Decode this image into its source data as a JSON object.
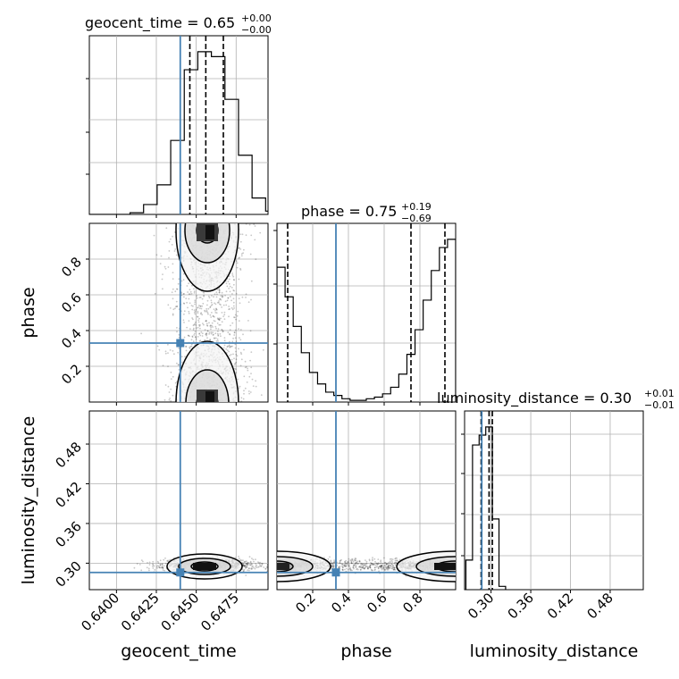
{
  "chart_data": {
    "type": "corner",
    "parameters": [
      "geocent_time",
      "phase",
      "luminosity_distance"
    ],
    "injected_values": {
      "geocent_time": 0.644,
      "phase": 0.33,
      "luminosity_distance": 0.286
    },
    "truth_color": "#4682b4",
    "histogram_color": "#000000",
    "grid": true,
    "panels": {
      "geocent_time_hist": {
        "title": {
          "prefix": "geocent_time = 0.65",
          "upper": "+0.00",
          "lower": "−0.00"
        },
        "xlim": [
          0.6383,
          0.6495
        ],
        "bins_x": [
          0.6383,
          0.63915,
          0.64,
          0.64085,
          0.6417,
          0.64255,
          0.6434,
          0.64425,
          0.6451,
          0.64595,
          0.6468,
          0.64765,
          0.6485,
          0.64935,
          0.6502
        ],
        "counts": [
          0.0,
          0.0,
          0.0,
          0.01,
          0.06,
          0.18,
          0.45,
          0.88,
          0.99,
          0.96,
          0.7,
          0.36,
          0.1,
          0.02
        ],
        "quantiles": [
          0.6446,
          0.6456,
          0.6467
        ]
      },
      "phase_hist": {
        "title": {
          "prefix": "phase = 0.75",
          "upper": "+0.19",
          "lower": "−0.69"
        },
        "xlim": [
          0.0,
          1.0
        ],
        "counts": [
          0.82,
          0.64,
          0.46,
          0.3,
          0.18,
          0.11,
          0.06,
          0.04,
          0.02,
          0.01,
          0.01,
          0.02,
          0.03,
          0.05,
          0.09,
          0.17,
          0.29,
          0.44,
          0.62,
          0.8,
          0.94,
          0.99
        ],
        "quantiles": [
          0.06,
          0.75,
          0.94
        ]
      },
      "luminosity_distance_hist": {
        "title": {
          "prefix": "luminosity_distance = 0.30",
          "upper": "+0.01",
          "lower": "−0.01"
        },
        "xlim": [
          0.26,
          0.53
        ],
        "bins_x": [
          0.262,
          0.272,
          0.282,
          0.292,
          0.302,
          0.312,
          0.322
        ],
        "counts": [
          0.18,
          0.88,
          0.94,
          0.99,
          0.43,
          0.02
        ],
        "quantiles": [
          0.285,
          0.297,
          0.302
        ]
      },
      "phase_vs_geocent_time": {
        "x_param": "geocent_time",
        "y_param": "phase",
        "xlim": [
          0.6383,
          0.6495
        ],
        "ylim": [
          0.0,
          1.0
        ],
        "modes": [
          {
            "x": 0.6458,
            "y": 0.95
          },
          {
            "x": 0.6458,
            "y": 0.05
          }
        ]
      },
      "luminosity_distance_vs_geocent_time": {
        "x_param": "geocent_time",
        "y_param": "luminosity_distance",
        "xlim": [
          0.6383,
          0.6495
        ],
        "ylim": [
          0.26,
          0.53
        ],
        "modes": [
          {
            "x": 0.6458,
            "y": 0.298
          }
        ]
      },
      "luminosity_distance_vs_phase": {
        "x_param": "phase",
        "y_param": "luminosity_distance",
        "xlim": [
          0.0,
          1.0
        ],
        "ylim": [
          0.26,
          0.53
        ],
        "modes": [
          {
            "x": 0.97,
            "y": 0.298
          },
          {
            "x": 0.02,
            "y": 0.298
          }
        ]
      }
    },
    "axes": {
      "geocent_time": {
        "label": "geocent_time",
        "ticks": [
          0.64,
          0.6425,
          0.645,
          0.6475
        ],
        "tick_labels": [
          "0.6400",
          "0.6425",
          "0.6450",
          "0.6475"
        ]
      },
      "phase": {
        "label": "phase",
        "ticks": [
          0.2,
          0.4,
          0.6,
          0.8
        ],
        "tick_labels": [
          "0.2",
          "0.4",
          "0.6",
          "0.8"
        ]
      },
      "luminosity_distance": {
        "label": "luminosity_distance",
        "ticks": [
          0.3,
          0.36,
          0.42,
          0.48
        ],
        "tick_labels": [
          "0.30",
          "0.36",
          "0.42",
          "0.48"
        ]
      }
    }
  }
}
